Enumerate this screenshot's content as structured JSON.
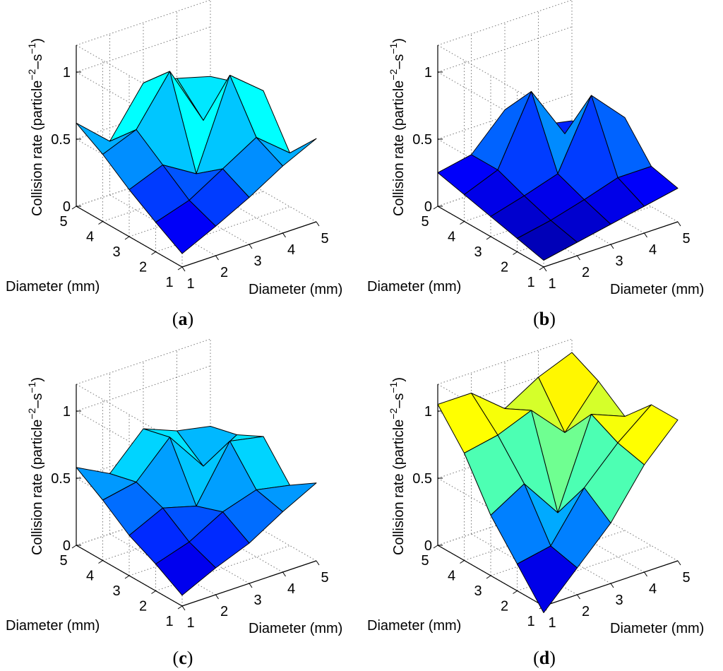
{
  "colors": {
    "colormap_jet": [
      "#00008f",
      "#0000ff",
      "#00ffff",
      "#ffff00",
      "#ff0000",
      "#800000"
    ],
    "grid": "#777777",
    "axis": "#000000"
  },
  "chart_data": [
    {
      "type": "surface3d",
      "panel_label": "a",
      "x": [
        1,
        2,
        3,
        4,
        5
      ],
      "y": [
        1,
        2,
        3,
        4,
        5
      ],
      "xlabel": "Diameter (mm)",
      "ylabel": "Diameter (mm)",
      "zlabel": "Collision rate (particle",
      "zlabel_sup1": "−2",
      "zlabel_mid": "–s",
      "zlabel_sup2": "−1",
      "zlabel_close": ")",
      "zlim": [
        0,
        1.2
      ],
      "zticks": [
        0,
        0.5,
        1
      ],
      "zticklabels": [
        "0",
        "0.5",
        "1"
      ],
      "xticklabels": [
        "1",
        "2",
        "3",
        "4",
        "5"
      ],
      "yticklabels": [
        "1",
        "2",
        "3",
        "4",
        "5"
      ],
      "clim": [
        0,
        1.8
      ],
      "z": [
        [
          0.1,
          0.22,
          0.35,
          0.5,
          0.62
        ],
        [
          0.22,
          0.3,
          0.45,
          0.6,
          0.4
        ],
        [
          0.35,
          0.45,
          0.3,
          0.95,
          0.75
        ],
        [
          0.5,
          0.6,
          0.95,
          0.5,
          0.7
        ],
        [
          0.62,
          0.4,
          0.75,
          0.7,
          0.63
        ]
      ]
    },
    {
      "type": "surface3d",
      "panel_label": "b",
      "x": [
        1,
        2,
        3,
        4,
        5
      ],
      "y": [
        1,
        2,
        3,
        4,
        5
      ],
      "xlabel": "Diameter (mm)",
      "ylabel": "Diameter (mm)",
      "zlabel": "Collision rate (particle",
      "zlabel_sup1": "−2",
      "zlabel_mid": "–s",
      "zlabel_sup2": "−1",
      "zlabel_close": ")",
      "zlim": [
        0,
        1.2
      ],
      "zticks": [
        0,
        0.5,
        1
      ],
      "zticklabels": [
        "0",
        "0.5",
        "1"
      ],
      "xticklabels": [
        "1",
        "2",
        "3",
        "4",
        "5"
      ],
      "yticklabels": [
        "1",
        "2",
        "3",
        "4",
        "5"
      ],
      "clim": [
        0,
        2.2
      ],
      "z": [
        [
          0.05,
          0.1,
          0.15,
          0.2,
          0.25
        ],
        [
          0.1,
          0.15,
          0.22,
          0.3,
          0.3
        ],
        [
          0.15,
          0.22,
          0.3,
          0.8,
          0.55
        ],
        [
          0.2,
          0.3,
          0.8,
          0.4,
          0.35
        ],
        [
          0.25,
          0.3,
          0.55,
          0.35,
          0.3
        ]
      ]
    },
    {
      "type": "surface3d",
      "panel_label": "c",
      "x": [
        1,
        2,
        3,
        4,
        5
      ],
      "y": [
        1,
        2,
        3,
        4,
        5
      ],
      "xlabel": "Diameter (mm)",
      "ylabel": "Diameter (mm)",
      "zlabel": "Collision rate (particle",
      "zlabel_sup1": "−2",
      "zlabel_mid": "–s",
      "zlabel_sup2": "−1",
      "zlabel_close": ")",
      "zlim": [
        0,
        1.2
      ],
      "zticks": [
        0,
        0.5,
        1
      ],
      "zticklabels": [
        "0",
        "0.5",
        "1"
      ],
      "xticklabels": [
        "1",
        "2",
        "3",
        "4",
        "5"
      ],
      "yticklabels": [
        "1",
        "2",
        "3",
        "4",
        "5"
      ],
      "clim": [
        0,
        1.8
      ],
      "z": [
        [
          0.08,
          0.2,
          0.3,
          0.45,
          0.58
        ],
        [
          0.2,
          0.28,
          0.42,
          0.5,
          0.45
        ],
        [
          0.3,
          0.42,
          0.35,
          0.75,
          0.7
        ],
        [
          0.45,
          0.5,
          0.75,
          0.45,
          0.6
        ],
        [
          0.58,
          0.45,
          0.7,
          0.6,
          0.55
        ]
      ]
    },
    {
      "type": "surface3d",
      "panel_label": "d",
      "x": [
        1,
        2,
        3,
        4,
        5
      ],
      "y": [
        1,
        2,
        3,
        4,
        5
      ],
      "xlabel": "Diameter (mm)",
      "ylabel": "Diameter (mm)",
      "zlabel": "Collision rate (particle",
      "zlabel_sup1": "−2",
      "zlabel_mid": "–s",
      "zlabel_sup2": "−1",
      "zlabel_close": ")",
      "zlim": [
        0,
        1.2
      ],
      "zticks": [
        0,
        0.5,
        1
      ],
      "zticklabels": [
        "0",
        "0.5",
        "1"
      ],
      "xticklabels": [
        "1",
        "2",
        "3",
        "4",
        "5"
      ],
      "yticklabels": [
        "1",
        "2",
        "3",
        "4",
        "5"
      ],
      "clim": [
        0,
        1.5
      ],
      "z": [
        [
          -0.05,
          0.2,
          0.45,
          0.8,
          1.05
        ],
        [
          0.2,
          0.25,
          0.6,
          0.85,
          1.05
        ],
        [
          0.45,
          0.6,
          0.3,
          0.95,
          0.85
        ],
        [
          0.8,
          0.85,
          0.95,
          0.7,
          1.0
        ],
        [
          1.05,
          1.05,
          0.85,
          1.0,
          1.1
        ]
      ]
    }
  ]
}
